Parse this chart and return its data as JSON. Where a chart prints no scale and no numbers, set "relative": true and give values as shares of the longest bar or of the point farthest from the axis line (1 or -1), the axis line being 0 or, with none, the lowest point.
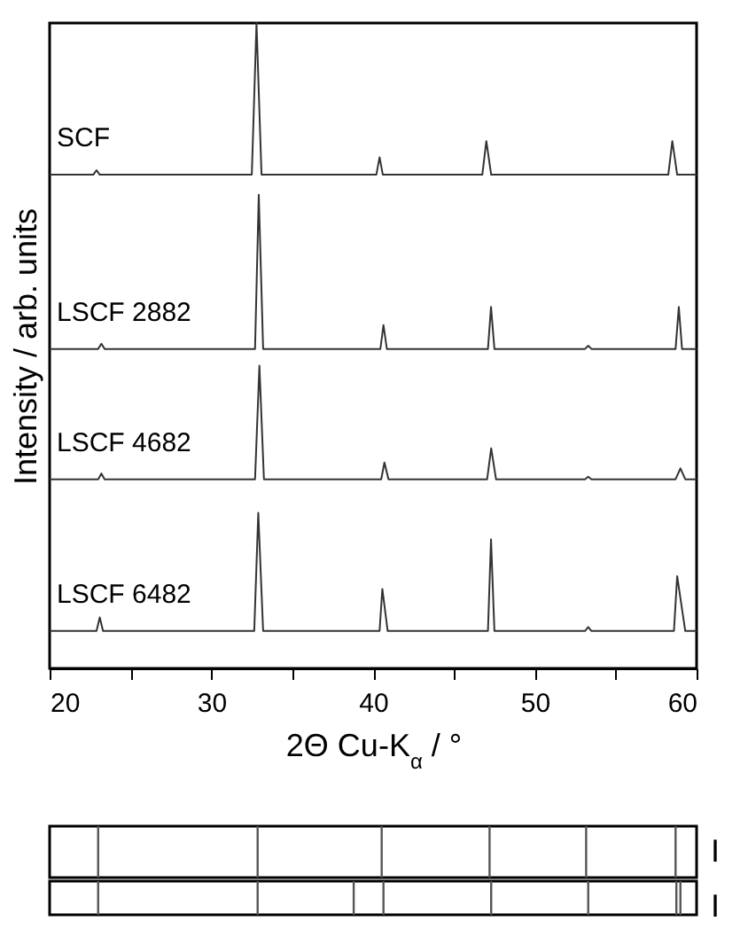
{
  "chart_data": [
    {
      "type": "line",
      "xlabel": "2Θ Cu-K$_{α}$ / °",
      "ylabel": "Intensity / arb. units",
      "relative": true,
      "xlim": [
        20,
        60
      ],
      "xticks": [
        20,
        {
          "value": 25,
          "label": null
        },
        30,
        {
          "value": 35,
          "label": null
        },
        40,
        {
          "value": 45,
          "label": null
        },
        50,
        {
          "value": 55,
          "label": null
        },
        60
      ],
      "grid": false,
      "legend": false,
      "marker": "none",
      "line_style": "solid",
      "series": [
        {
          "name": "SCF",
          "color": "#333333",
          "x": [
            20,
            22.7,
            22.9,
            23.1,
            32.5,
            32.79,
            33.1,
            40.2,
            40.4,
            40.6,
            46.75,
            47.0,
            47.3,
            58.25,
            58.5,
            58.8,
            60
          ],
          "values": [
            0.765,
            0.765,
            0.772,
            0.765,
            0.765,
            1.0,
            0.765,
            0.765,
            0.792,
            0.765,
            0.765,
            0.817,
            0.765,
            0.765,
            0.817,
            0.765,
            0.765
          ]
        },
        {
          "name": "LSCF 2882",
          "color": "#333333",
          "x": [
            20,
            23.0,
            23.2,
            23.4,
            32.7,
            32.93,
            33.2,
            40.45,
            40.64,
            40.85,
            47.1,
            47.29,
            47.5,
            53.1,
            53.3,
            53.5,
            58.7,
            58.9,
            59.1,
            60
          ],
          "values": [
            0.495,
            0.495,
            0.503,
            0.495,
            0.495,
            0.734,
            0.495,
            0.495,
            0.532,
            0.495,
            0.495,
            0.56,
            0.495,
            0.495,
            0.5,
            0.495,
            0.495,
            0.56,
            0.495,
            0.495
          ]
        },
        {
          "name": "LSCF 4682",
          "color": "#333333",
          "x": [
            20,
            23.0,
            23.2,
            23.4,
            32.7,
            32.97,
            33.25,
            40.5,
            40.7,
            40.95,
            47.05,
            47.3,
            47.6,
            53.1,
            53.3,
            53.5,
            58.7,
            59.0,
            59.3,
            60
          ],
          "values": [
            0.293,
            0.293,
            0.302,
            0.293,
            0.293,
            0.469,
            0.293,
            0.293,
            0.319,
            0.293,
            0.293,
            0.341,
            0.293,
            0.293,
            0.297,
            0.293,
            0.293,
            0.31,
            0.293,
            0.293
          ]
        },
        {
          "name": "LSCF 6482",
          "color": "#333333",
          "x": [
            20,
            22.9,
            23.1,
            23.3,
            32.65,
            32.9,
            33.2,
            40.4,
            40.57,
            40.9,
            47.1,
            47.29,
            47.5,
            53.1,
            53.3,
            53.5,
            58.6,
            58.8,
            59.05,
            59.3,
            60
          ],
          "values": [
            0.058,
            0.058,
            0.079,
            0.058,
            0.058,
            0.241,
            0.058,
            0.058,
            0.123,
            0.058,
            0.058,
            0.2,
            0.058,
            0.058,
            0.064,
            0.058,
            0.058,
            0.143,
            0.1,
            0.058,
            0.058
          ]
        }
      ]
    },
    {
      "type": "bar",
      "relative": true,
      "xlim": [
        20,
        60
      ],
      "tick_labels": false,
      "annotations": [
        "I"
      ],
      "color": "#555555",
      "x": [
        23.0,
        32.86,
        40.53,
        47.2,
        53.17,
        58.7
      ],
      "values": [
        1,
        1,
        1,
        1,
        1,
        1
      ]
    },
    {
      "type": "bar",
      "relative": true,
      "xlim": [
        20,
        60
      ],
      "tick_labels": false,
      "annotations": [
        "I"
      ],
      "color": "#555555",
      "x": [
        23.0,
        32.86,
        38.8,
        40.64,
        47.3,
        53.3,
        58.75,
        59.0
      ],
      "values": [
        1,
        1,
        1,
        1,
        1,
        1,
        1,
        1
      ]
    }
  ]
}
